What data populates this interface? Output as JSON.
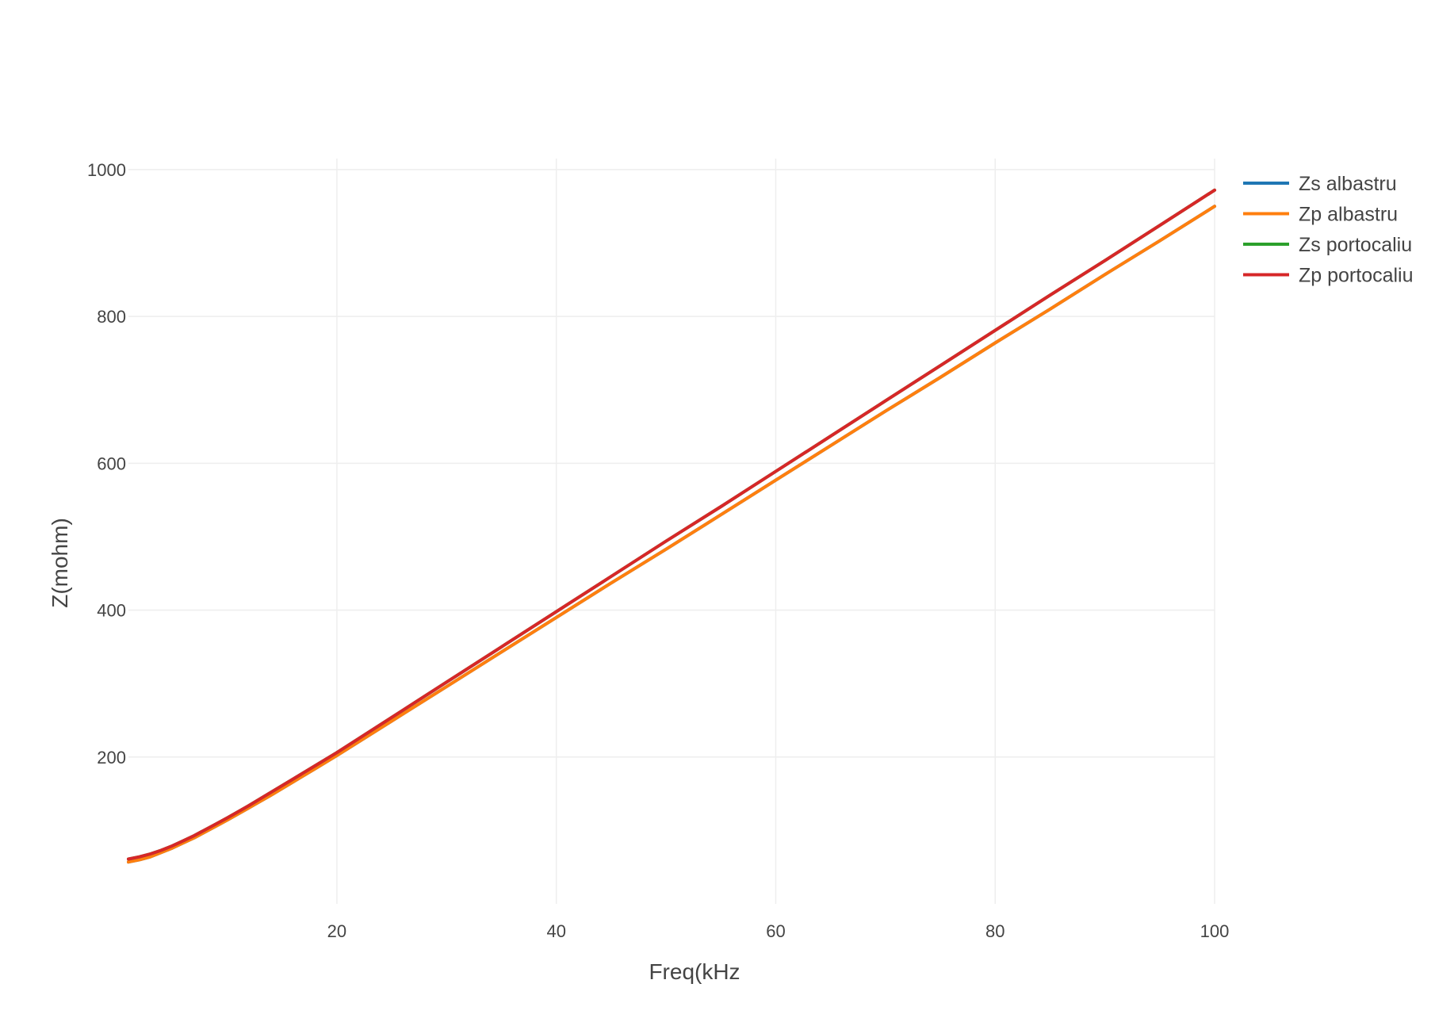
{
  "chart_data": {
    "type": "line",
    "title": "",
    "xlabel": "Freq(kHz",
    "ylabel": "Z(mohm)",
    "xlim": [
      1,
      100
    ],
    "ylim": [
      0,
      1015
    ],
    "x_ticks": [
      20,
      40,
      60,
      80,
      100
    ],
    "y_ticks": [
      200,
      400,
      600,
      800,
      1000
    ],
    "grid": true,
    "legend_position": "top-right",
    "x": [
      1,
      2,
      3,
      4,
      5,
      6,
      7,
      8,
      9,
      10,
      12,
      14,
      16,
      18,
      20,
      25,
      30,
      35,
      40,
      45,
      50,
      55,
      60,
      65,
      70,
      75,
      80,
      85,
      90,
      95,
      100
    ],
    "series": [
      {
        "name": "Zs albastru",
        "color": "#1f77b4",
        "values": [
          57,
          60,
          64,
          70,
          76,
          83,
          90,
          98,
          106,
          114,
          131,
          148,
          166,
          184,
          202,
          249,
          296,
          343,
          390,
          437,
          483,
          530,
          577,
          624,
          671,
          717,
          764,
          810,
          857,
          903,
          950
        ]
      },
      {
        "name": "Zp albastru",
        "color": "#ff7f0e",
        "values": [
          57,
          60,
          64,
          70,
          76,
          83,
          90,
          98,
          106,
          114,
          131,
          148,
          166,
          184,
          202,
          249,
          296,
          343,
          390,
          437,
          483,
          530,
          577,
          624,
          671,
          717,
          764,
          810,
          857,
          903,
          950
        ]
      },
      {
        "name": "Zs portocaliu",
        "color": "#2ca02c",
        "values": [
          61,
          64,
          68,
          73,
          79,
          86,
          93,
          101,
          109,
          117,
          134,
          152,
          170,
          188,
          206,
          254,
          302,
          350,
          398,
          446,
          494,
          541,
          589,
          637,
          685,
          733,
          781,
          829,
          876,
          924,
          972
        ]
      },
      {
        "name": "Zp portocaliu",
        "color": "#d62728",
        "values": [
          61,
          64,
          68,
          73,
          79,
          86,
          93,
          101,
          109,
          117,
          134,
          152,
          170,
          188,
          206,
          254,
          302,
          350,
          398,
          446,
          494,
          541,
          589,
          637,
          685,
          733,
          781,
          829,
          876,
          924,
          972
        ]
      }
    ]
  }
}
